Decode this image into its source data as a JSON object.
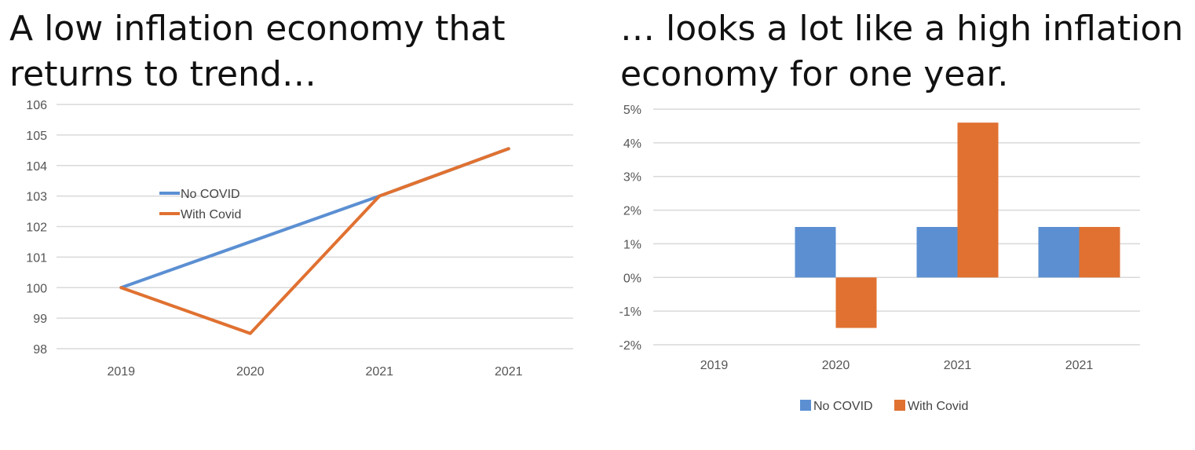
{
  "titles": {
    "left_line1": "A low inflation economy that",
    "left_line2": "returns to trend…",
    "right_line1": "… looks a lot like a high inflation",
    "right_line2": "economy for one year."
  },
  "colors": {
    "no_covid": "#5b8fd2",
    "with_covid": "#e07131",
    "grid": "#d9d9d9"
  },
  "chart_data": [
    {
      "type": "line",
      "title": "",
      "xlabel": "",
      "ylabel": "",
      "categories": [
        "2019",
        "2020",
        "2021",
        "2021"
      ],
      "ylim": [
        98,
        106
      ],
      "yticks": [
        "106",
        "105",
        "104",
        "103",
        "102",
        "101",
        "100",
        "99",
        "98"
      ],
      "grid": true,
      "legend_position": "inside-upper-left",
      "series": [
        {
          "name": "No COVID",
          "values": [
            100,
            101.5,
            103,
            104.55
          ]
        },
        {
          "name": "With Covid",
          "values": [
            100,
            98.5,
            103,
            104.55
          ]
        }
      ]
    },
    {
      "type": "bar",
      "title": "",
      "xlabel": "",
      "ylabel": "",
      "categories": [
        "2019",
        "2020",
        "2021",
        "2021"
      ],
      "ylim": [
        -2,
        5
      ],
      "yticks": [
        "5%",
        "4%",
        "3%",
        "2%",
        "1%",
        "0%",
        "-1%",
        "-2%"
      ],
      "grid": true,
      "legend_position": "bottom",
      "series": [
        {
          "name": "No COVID",
          "values": [
            0,
            1.5,
            1.5,
            1.5
          ]
        },
        {
          "name": "With Covid",
          "values": [
            0,
            -1.5,
            4.6,
            1.5
          ]
        }
      ]
    }
  ]
}
